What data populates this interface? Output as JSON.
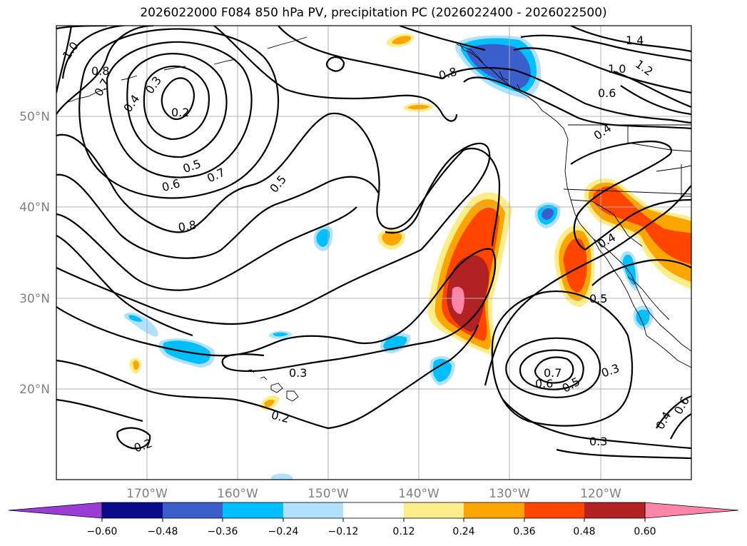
{
  "title": "2026022000 F084 850 hPa PV, precipitation PC (2026022400 - 2026022500)",
  "map": {
    "lat_ticks": [
      "50°N",
      "40°N",
      "30°N",
      "20°N"
    ],
    "lon_ticks": [
      "170°W",
      "160°W",
      "150°W",
      "140°W",
      "130°W",
      "120°W"
    ],
    "grid": true
  },
  "colorbar": {
    "colors": [
      "#9a3dd6",
      "#0a0a8c",
      "#3a5fcd",
      "#00bfff",
      "#b0e2ff",
      "#ffffff",
      "#ffec8b",
      "#ffa500",
      "#ff4500",
      "#b22222",
      "#ff85a8"
    ],
    "tick_labels": [
      "−0.60",
      "−0.48",
      "−0.36",
      "−0.24",
      "−0.12",
      "0.12",
      "0.24",
      "0.36",
      "0.48",
      "0.60"
    ],
    "extend": "both"
  },
  "contour_labels": [
    {
      "id": "c1",
      "text": "1.0"
    },
    {
      "id": "c2",
      "text": "0.8"
    },
    {
      "id": "c3",
      "text": "0.7"
    },
    {
      "id": "c4",
      "text": "0.3"
    },
    {
      "id": "c5",
      "text": "0.4"
    },
    {
      "id": "c6",
      "text": "0.2"
    },
    {
      "id": "c7",
      "text": "0.5"
    },
    {
      "id": "c8",
      "text": "0.7"
    },
    {
      "id": "c9",
      "text": "0.6"
    },
    {
      "id": "c10",
      "text": "0.8"
    },
    {
      "id": "c11",
      "text": "0.5"
    },
    {
      "id": "c12",
      "text": "0.8"
    },
    {
      "id": "c13",
      "text": "1.4"
    },
    {
      "id": "c14",
      "text": "1.0"
    },
    {
      "id": "c15",
      "text": "1.2"
    },
    {
      "id": "c16",
      "text": "0.6"
    },
    {
      "id": "c17",
      "text": "0.4"
    },
    {
      "id": "c18",
      "text": "0.4"
    },
    {
      "id": "c19",
      "text": "0.5"
    },
    {
      "id": "c20",
      "text": "0.3"
    },
    {
      "id": "c21",
      "text": "0.2"
    },
    {
      "id": "c22",
      "text": "0.7"
    },
    {
      "id": "c23",
      "text": "0.6"
    },
    {
      "id": "c24",
      "text": "0.5"
    },
    {
      "id": "c25",
      "text": "0.3"
    },
    {
      "id": "c26",
      "text": "0.3"
    },
    {
      "id": "c27",
      "text": "0.2"
    },
    {
      "id": "c28",
      "text": "0.4"
    },
    {
      "id": "c29",
      "text": "0.6"
    }
  ]
}
